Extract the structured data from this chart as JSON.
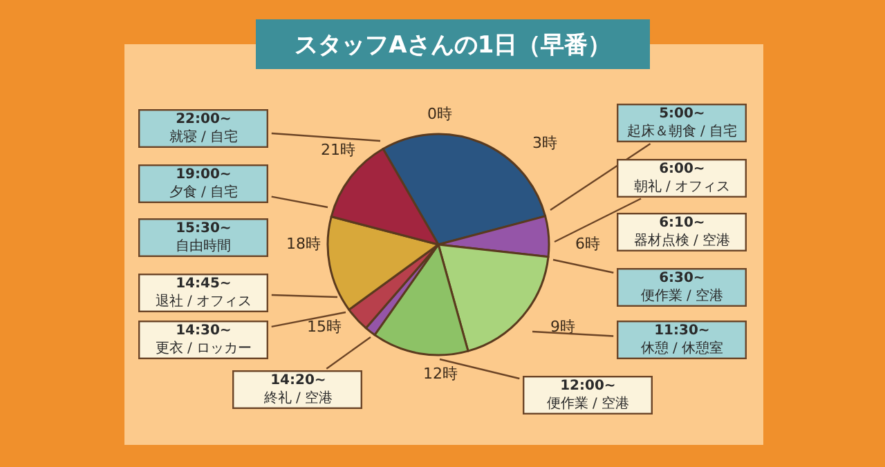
{
  "chart_data": {
    "type": "pie",
    "title": "スタッフAさんの1日（早番）",
    "categories": [
      null,
      null,
      null,
      null,
      null,
      null,
      null,
      null
    ],
    "values": [
      29.2,
      5.9,
      18.9,
      14.1,
      1.6,
      3.6,
      14.1,
      12.6
    ],
    "colors": [
      "#2a5582",
      "#9555a8",
      "#a9d47c",
      "#8dc266",
      "#9555a8",
      "#b8404c",
      "#d8a83a",
      "#a2253f"
    ],
    "legend": false,
    "annotations": [
      "0時",
      "3時",
      "6時",
      "9時",
      "12時",
      "15時",
      "18時",
      "21時",
      "22:00~\n就寝 / 自宅",
      "19:00~\n夕食 / 自宅",
      "15:30~\n自由時間",
      "14:45~\n退社 / オフィス",
      "14:30~\n更衣 / ロッカー",
      "14:20~\n終礼 / 空港",
      "5:00~\n起床＆朝食 / 自宅",
      "6:00~\n朝礼 / オフィス",
      "6:10~\n器材点検 / 空港",
      "6:30~\n便作業 / 空港",
      "11:30~\n休憩 / 休憩室",
      "12:00~\n便作業 / 空港"
    ]
  }
}
